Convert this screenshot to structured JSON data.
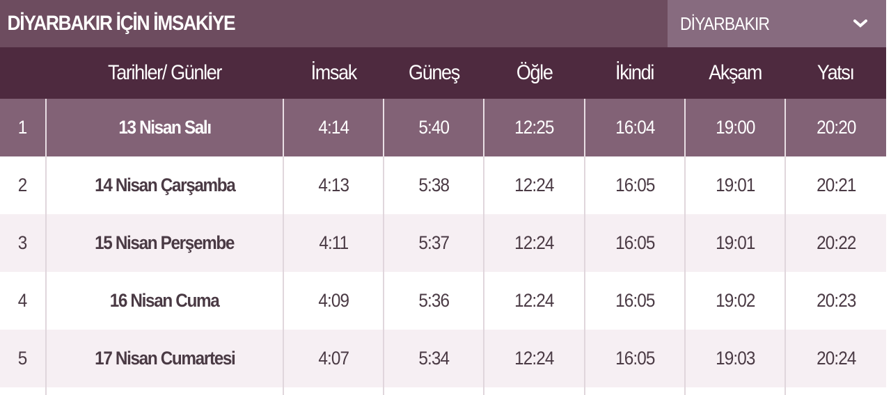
{
  "header": {
    "title": "DİYARBAKIR İÇİN İMSAKİYE",
    "city_select": {
      "value": "DİYARBAKIR",
      "icon": "chevron-down-icon"
    }
  },
  "colors": {
    "title_bg": "#6d4c5f",
    "header_bg": "#4e2a3f",
    "highlight_row": "#826276",
    "alt_row": "#f6eff3",
    "dropdown_bg": "#876b7f"
  },
  "table": {
    "columns": [
      "",
      "Tarihler/ Günler",
      "İmsak",
      "Güneş",
      "Öğle",
      "İkindi",
      "Akşam",
      "Yatsı"
    ],
    "rows": [
      {
        "no": "1",
        "date": "13 Nisan Salı",
        "imsak": "4:14",
        "gunes": "5:40",
        "ogle": "12:25",
        "ikindi": "16:04",
        "aksam": "19:00",
        "yatsi": "20:20"
      },
      {
        "no": "2",
        "date": "14 Nisan Çarşamba",
        "imsak": "4:13",
        "gunes": "5:38",
        "ogle": "12:24",
        "ikindi": "16:05",
        "aksam": "19:01",
        "yatsi": "20:21"
      },
      {
        "no": "3",
        "date": "15 Nisan Perşembe",
        "imsak": "4:11",
        "gunes": "5:37",
        "ogle": "12:24",
        "ikindi": "16:05",
        "aksam": "19:01",
        "yatsi": "20:22"
      },
      {
        "no": "4",
        "date": "16 Nisan Cuma",
        "imsak": "4:09",
        "gunes": "5:36",
        "ogle": "12:24",
        "ikindi": "16:05",
        "aksam": "19:02",
        "yatsi": "20:23"
      },
      {
        "no": "5",
        "date": "17 Nisan Cumartesi",
        "imsak": "4:07",
        "gunes": "5:34",
        "ogle": "12:24",
        "ikindi": "16:05",
        "aksam": "19:03",
        "yatsi": "20:24"
      }
    ]
  }
}
